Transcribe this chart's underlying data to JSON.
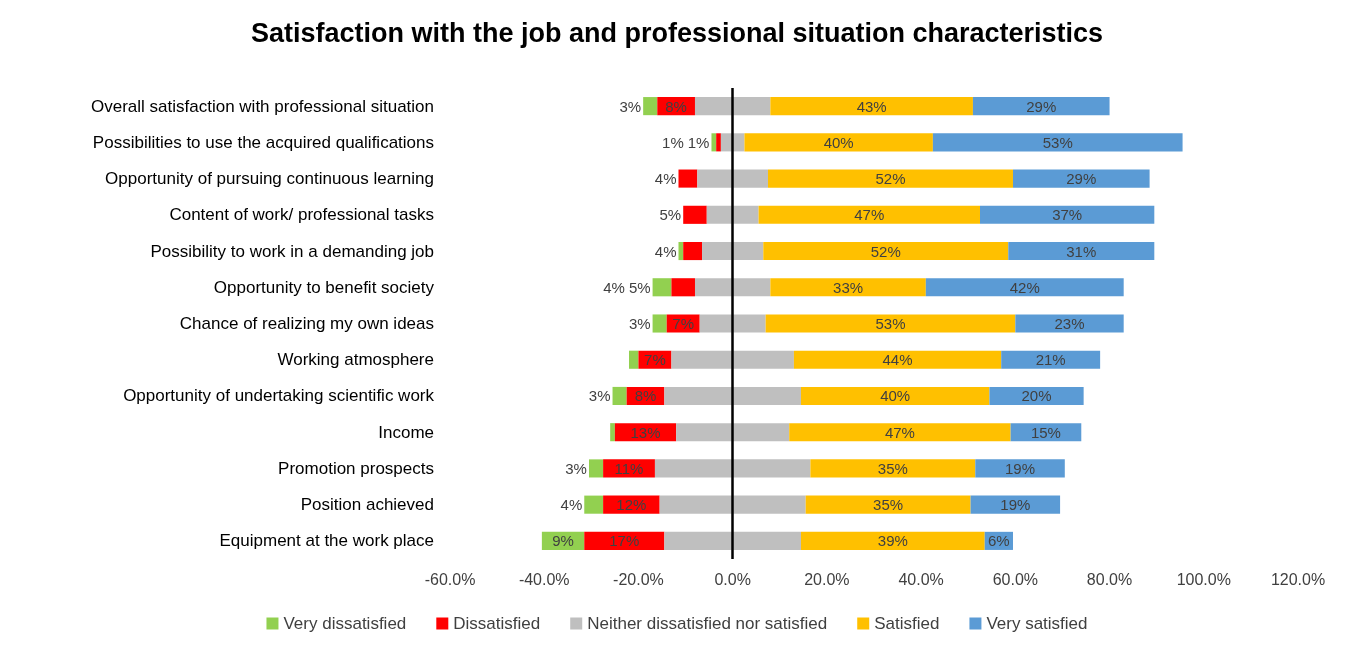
{
  "chart_data": {
    "type": "bar",
    "orientation": "horizontal",
    "title": "Satisfaction with the job and professional situation characteristics",
    "categories": [
      "Overall satisfaction with professional situation",
      "Possibilities to use the acquired qualifications",
      "Opportunity of pursuing continuous learning",
      "Content of work/ professional tasks",
      "Possibility to work in a demanding job",
      "Opportunity to benefit society",
      "Chance of realizing my own ideas",
      "Working atmosphere",
      "Opportunity of undertaking scientific work",
      "Income",
      "Promotion prospects",
      "Position achieved",
      "Equipment at the work place"
    ],
    "series": [
      {
        "name": "Very dissatisfied",
        "color": "#92d050",
        "values": [
          3,
          1,
          null,
          null,
          1,
          4,
          3,
          2,
          3,
          1,
          3,
          4,
          9
        ],
        "base": [
          -19,
          -4.5,
          null,
          null,
          -11.5,
          -17,
          -17,
          -22,
          -25.5,
          -26,
          -30.5,
          -31.5,
          -40.5
        ],
        "value_labels": [
          "3%",
          "1%",
          null,
          null,
          null,
          "4%",
          "3%",
          null,
          "3%",
          null,
          "3%",
          "4%",
          "9%"
        ]
      },
      {
        "name": "Dissatisfied",
        "color": "#ff0000",
        "values": [
          8,
          1,
          4,
          5,
          4,
          5,
          7,
          7,
          8,
          13,
          11,
          12,
          17
        ],
        "base": [
          -16,
          -3.5,
          -11.5,
          -10.5,
          -10.5,
          -13,
          -14,
          -20,
          -22.5,
          -25,
          -27.5,
          -27.5,
          -31.5
        ],
        "value_labels": [
          "8%",
          "1%",
          "4%",
          "5%",
          "4%",
          "5%",
          "7%",
          "7%",
          "8%",
          "13%",
          "11%",
          "12%",
          "17%"
        ]
      },
      {
        "name": "Neither dissatisfied nor satisfied",
        "color": "#bfbfbf",
        "values": [
          16,
          5,
          15,
          11,
          13,
          16,
          14,
          26,
          29,
          24,
          33,
          31,
          29
        ],
        "base": [
          -8,
          -2.5,
          -7.5,
          -5.5,
          -6.5,
          -8,
          -7,
          -13,
          -14.5,
          -12,
          -16.5,
          -15.5,
          -14.5
        ]
      },
      {
        "name": "Satisfied",
        "color": "#ffc000",
        "values": [
          43,
          40,
          52,
          47,
          52,
          33,
          53,
          44,
          40,
          47,
          35,
          35,
          39
        ],
        "base": [
          8,
          2.5,
          7.5,
          5.5,
          6.5,
          8,
          7,
          13,
          14.5,
          12,
          16.5,
          15.5,
          14.5
        ],
        "value_labels": [
          "43%",
          "40%",
          "52%",
          "47%",
          "52%",
          "33%",
          "53%",
          "44%",
          "40%",
          "47%",
          "35%",
          "35%",
          "39%"
        ]
      },
      {
        "name": "Very satisfied",
        "color": "#5b9bd5",
        "values": [
          29,
          53,
          29,
          37,
          31,
          42,
          23,
          21,
          20,
          15,
          19,
          19,
          6
        ],
        "base": [
          51,
          42.5,
          59.5,
          52.5,
          58.5,
          41,
          60,
          57,
          54.5,
          59,
          51.5,
          50.5,
          53.5
        ],
        "value_labels": [
          "29%",
          "53%",
          "29%",
          "37%",
          "31%",
          "42%",
          "23%",
          "21%",
          "20%",
          "15%",
          "19%",
          "19%",
          "6%"
        ]
      }
    ],
    "xlim": [
      -60,
      120
    ],
    "xticks": [
      {
        "value": -60,
        "label": "-60.0%"
      },
      {
        "value": -40,
        "label": "-40.0%"
      },
      {
        "value": -20,
        "label": "-20.0%"
      },
      {
        "value": 0,
        "label": "0.0%"
      },
      {
        "value": 20,
        "label": "20.0%"
      },
      {
        "value": 40,
        "label": "40.0%"
      },
      {
        "value": 60,
        "label": "60.0%"
      },
      {
        "value": 80,
        "label": "80.0%"
      },
      {
        "value": 100,
        "label": "100.0%"
      },
      {
        "value": 120,
        "label": "120.0%"
      }
    ],
    "ref_lines": [
      {
        "axis": "x",
        "value": 0,
        "color": "#000000"
      }
    ],
    "grid": false,
    "legend": "bottom"
  }
}
